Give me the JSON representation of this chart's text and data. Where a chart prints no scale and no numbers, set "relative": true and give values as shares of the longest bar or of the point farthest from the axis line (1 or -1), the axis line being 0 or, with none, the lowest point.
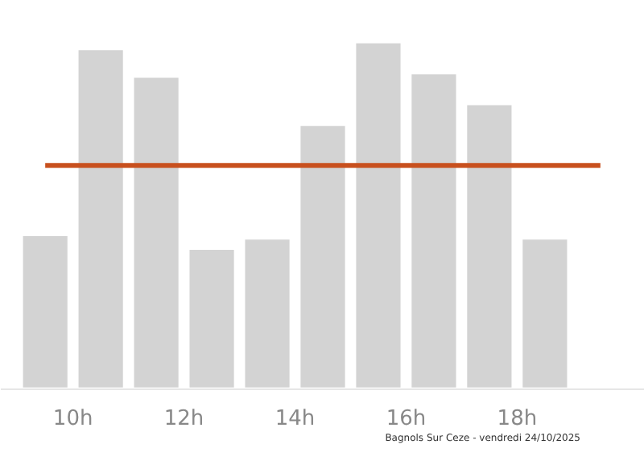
{
  "chart_data": {
    "type": "bar",
    "relative": true,
    "x": [
      9.5,
      10.5,
      11.5,
      12.5,
      13.5,
      14.5,
      15.5,
      16.5,
      17.5,
      18.5
    ],
    "xlim": [
      8.7,
      20.3
    ],
    "xticks": [
      {
        "value": 10,
        "label": "10h"
      },
      {
        "value": 12,
        "label": "12h"
      },
      {
        "value": 14,
        "label": "14h"
      },
      {
        "value": 16,
        "label": "16h"
      },
      {
        "value": 18,
        "label": "18h"
      }
    ],
    "series": [
      {
        "color": "#d3d3d3",
        "values": [
          0.44,
          0.98,
          0.9,
          0.4,
          0.43,
          0.76,
          1,
          0.91,
          0.82,
          0.43
        ]
      },
      {
        "type": "line",
        "color": "#c8501e",
        "x": [
          9.5,
          19.5
        ],
        "values": [
          0.645,
          0.645
        ]
      }
    ],
    "annotations": [
      "Bagnols Sur Ceze - vendredi 24/10/2025"
    ]
  }
}
